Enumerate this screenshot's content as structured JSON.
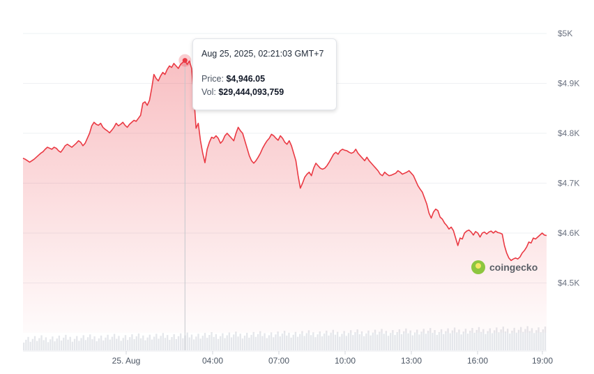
{
  "chart_data": {
    "type": "area",
    "y_axis": {
      "ticks": [
        "$4.5K",
        "$4.6K",
        "$4.7K",
        "$4.8K",
        "$4.9K",
        "$5K"
      ],
      "position": "right",
      "ylim": [
        4400,
        5000
      ]
    },
    "x_axis": {
      "ticks": [
        "25. Aug",
        "04:00",
        "07:00",
        "10:00",
        "13:00",
        "16:00",
        "19:00"
      ]
    },
    "grid": true,
    "line_color": "#ea3943",
    "fill_color": "#ea3943",
    "volume_color": "#e5e7eb",
    "series": [
      {
        "values": [
          4750,
          4748,
          4745,
          4742,
          4745,
          4748,
          4752,
          4756,
          4760,
          4763,
          4768,
          4772,
          4770,
          4768,
          4772,
          4770,
          4765,
          4762,
          4768,
          4775,
          4778,
          4775,
          4772,
          4776,
          4780,
          4785,
          4782,
          4775,
          4780,
          4790,
          4800,
          4815,
          4822,
          4818,
          4816,
          4820,
          4812,
          4808,
          4805,
          4801,
          4806,
          4812,
          4820,
          4815,
          4818,
          4822,
          4816,
          4812,
          4818,
          4822,
          4826,
          4824,
          4830,
          4836,
          4860,
          4863,
          4856,
          4866,
          4890,
          4918,
          4910,
          4905,
          4915,
          4922,
          4918,
          4928,
          4935,
          4932,
          4940,
          4935,
          4930,
          4938,
          4942,
          4946,
          4938,
          4945,
          4930,
          4875,
          4810,
          4820,
          4785,
          4760,
          4741,
          4768,
          4782,
          4792,
          4790,
          4795,
          4790,
          4780,
          4785,
          4795,
          4800,
          4795,
          4790,
          4785,
          4800,
          4812,
          4805,
          4800,
          4785,
          4770,
          4755,
          4745,
          4740,
          4745,
          4752,
          4760,
          4770,
          4778,
          4785,
          4790,
          4798,
          4795,
          4790,
          4786,
          4795,
          4790,
          4782,
          4778,
          4785,
          4775,
          4760,
          4745,
          4715,
          4690,
          4700,
          4712,
          4718,
          4722,
          4715,
          4730,
          4740,
          4735,
          4730,
          4728,
          4730,
          4735,
          4742,
          4750,
          4758,
          4762,
          4758,
          4765,
          4768,
          4766,
          4765,
          4762,
          4760,
          4762,
          4768,
          4760,
          4755,
          4750,
          4745,
          4752,
          4745,
          4740,
          4735,
          4730,
          4725,
          4718,
          4715,
          4722,
          4718,
          4715,
          4716,
          4718,
          4720,
          4725,
          4722,
          4718,
          4720,
          4722,
          4725,
          4720,
          4715,
          4705,
          4695,
          4688,
          4682,
          4670,
          4658,
          4640,
          4630,
          4642,
          4648,
          4645,
          4632,
          4628,
          4620,
          4615,
          4608,
          4612,
          4605,
          4590,
          4575,
          4590,
          4588,
          4600,
          4604,
          4606,
          4602,
          4596,
          4603,
          4600,
          4592,
          4600,
          4602,
          4598,
          4602,
          4604,
          4600,
          4604,
          4601,
          4600,
          4598,
          4575,
          4560,
          4550,
          4545,
          4548,
          4550,
          4548,
          4552,
          4560,
          4565,
          4572,
          4582,
          4580,
          4590,
          4588,
          4592,
          4596,
          4600,
          4596,
          4595
        ]
      }
    ],
    "highlight": {
      "index": 73,
      "time": "Aug 25, 2025, 02:21:03 GMT+7",
      "price": "$4,946.05",
      "volume": "$29,444,093,759"
    }
  },
  "tooltip": {
    "time": "Aug 25, 2025, 02:21:03 GMT+7",
    "price_label": "Price:",
    "price_value": "$4,946.05",
    "vol_label": "Vol:",
    "vol_value": "$29,444,093,759"
  },
  "watermark": {
    "brand": "coingecko",
    "icon": "coingecko-logo-icon"
  }
}
